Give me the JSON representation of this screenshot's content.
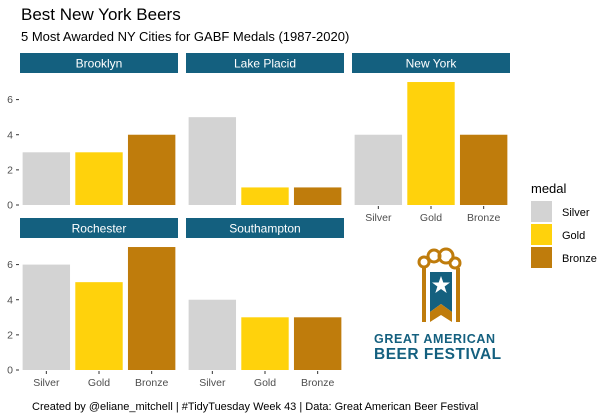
{
  "chart_data": {
    "type": "bar",
    "title": "Best New York Beers",
    "subtitle": "5 Most Awarded NY Cities for GABF Medals (1987-2020)",
    "caption": "Created by @eliane_mitchell | #TidyTuesday Week 43 | Data: Great American Beer Festival",
    "categories": [
      "Silver",
      "Gold",
      "Bronze"
    ],
    "ylim": [
      0,
      7.4
    ],
    "yticks": [
      0,
      2,
      4,
      6
    ],
    "grid": false,
    "legend": {
      "title": "medal",
      "placement": "right",
      "entries": [
        "Silver",
        "Gold",
        "Bronze"
      ]
    },
    "colors": {
      "Silver": "#d3d3d3",
      "Gold": "#ffd20c",
      "Bronze": "#bf7c0c",
      "strip": "#14607f",
      "panel": "#ffffff"
    },
    "facets": [
      {
        "label": "Brooklyn",
        "values": [
          3,
          3,
          4
        ]
      },
      {
        "label": "Lake Placid",
        "values": [
          5,
          1,
          1
        ]
      },
      {
        "label": "New York",
        "values": [
          4,
          7,
          4
        ]
      },
      {
        "label": "Rochester",
        "values": [
          6,
          5,
          7
        ]
      },
      {
        "label": "Southampton",
        "values": [
          4,
          3,
          3
        ]
      }
    ]
  },
  "logo": {
    "line1": "GREAT AMERICAN",
    "line2": "BEER FESTIVAL",
    "icon": "beer-mug-star-icon"
  }
}
